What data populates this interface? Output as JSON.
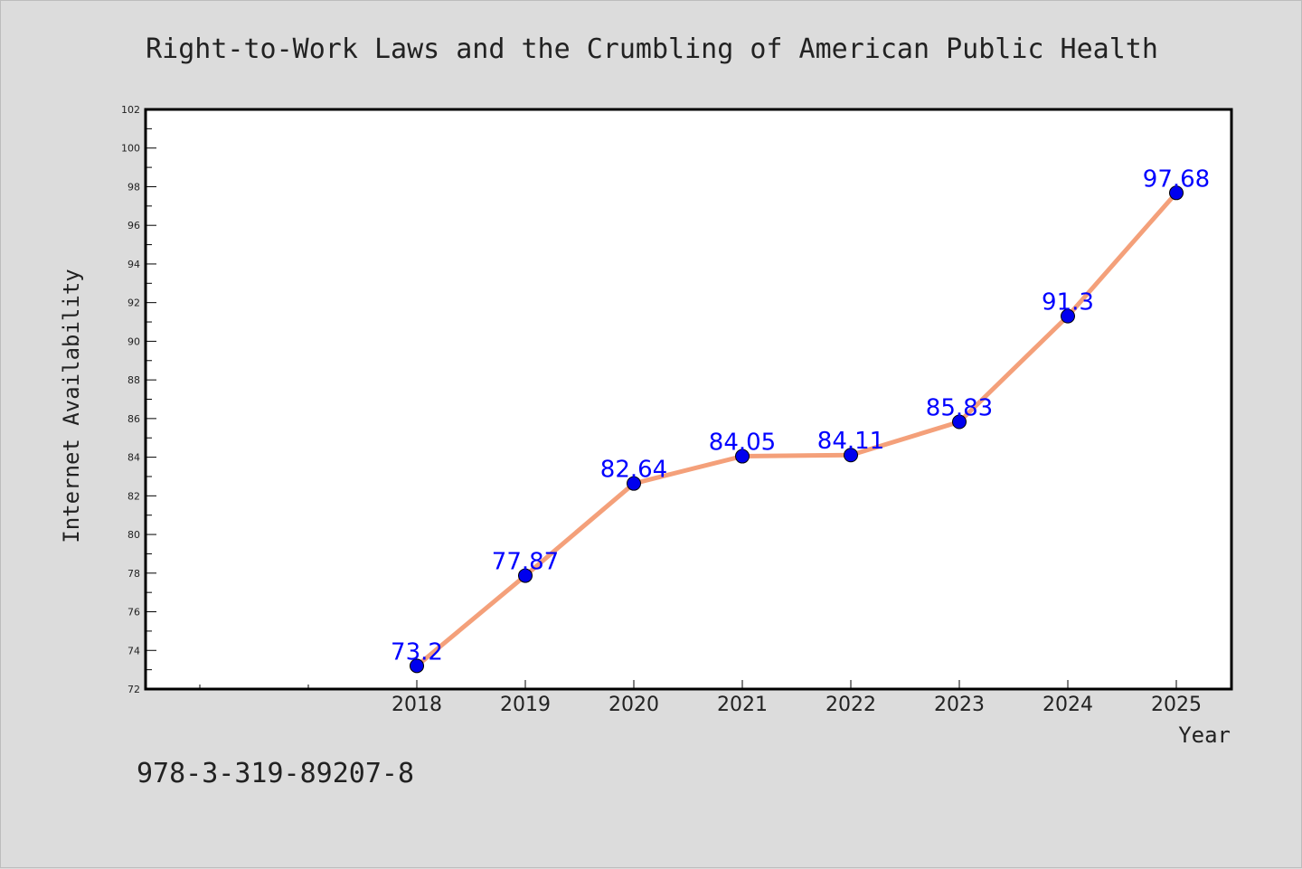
{
  "chart_data": {
    "type": "line",
    "title": "Right-to-Work Laws and the Crumbling of American Public Health",
    "xlabel": "Year",
    "ylabel": "Internet Availability",
    "x": [
      "2018",
      "2019",
      "2020",
      "2021",
      "2022",
      "2023",
      "2024",
      "2025"
    ],
    "x_ticks_unlabeled_before": 2,
    "series": [
      {
        "values": [
          73.2,
          77.87,
          82.64,
          84.05,
          84.11,
          85.83,
          91.3,
          97.68
        ]
      }
    ],
    "data_labels": [
      "73.2",
      "77.87",
      "82.64",
      "84.05",
      "84.11",
      "85.83",
      "91.3",
      "97.68"
    ],
    "ylim": [
      72,
      102
    ],
    "y_major_step": 2,
    "grid": false,
    "legend": "none",
    "line_color": "#f4a07a",
    "marker_color": "#0000ee",
    "label_color": "#0000ff"
  },
  "footer_text": "978-3-319-89207-8"
}
